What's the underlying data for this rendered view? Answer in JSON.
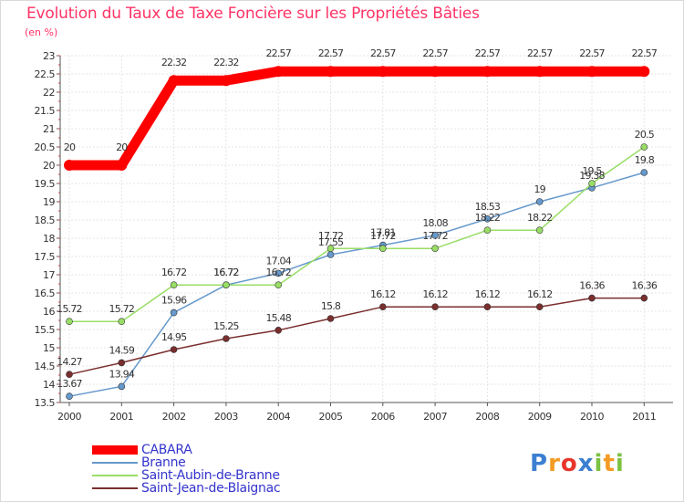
{
  "chart_data": {
    "type": "line",
    "title": "Evolution du Taux de Taxe Foncière sur les Propriétés Bâties",
    "ylabel": "(en %)",
    "xlabel": "",
    "ylim": [
      13.5,
      23
    ],
    "yticks": [
      13.5,
      14,
      14.5,
      15,
      15.5,
      16,
      16.5,
      17,
      17.5,
      18,
      18.5,
      19,
      19.5,
      20,
      20.5,
      21,
      21.5,
      22,
      22.5,
      23
    ],
    "ytick_labels": [
      "13.5",
      "14",
      "14.5",
      "15",
      "15.5",
      "16",
      "16.5",
      "17",
      "17.5",
      "18",
      "18.5",
      "19",
      "19.5",
      "20",
      "20.5",
      "21",
      "21.5",
      "22",
      "22.5",
      "23"
    ],
    "categories": [
      "2000",
      "2001",
      "2002",
      "2003",
      "2004",
      "2005",
      "2006",
      "2007",
      "2008",
      "2009",
      "2010",
      "2011"
    ],
    "grid": true,
    "series": [
      {
        "name": "CABARA",
        "color": "#ff0000",
        "values": [
          20,
          20,
          22.32,
          22.32,
          22.57,
          22.57,
          22.57,
          22.57,
          22.57,
          22.57,
          22.57,
          22.57
        ],
        "labels": [
          "20",
          "20",
          "22.32",
          "22.32",
          "22.57",
          "22.57",
          "22.57",
          "22.57",
          "22.57",
          "22.57",
          "22.57",
          "22.57"
        ]
      },
      {
        "name": "Branne",
        "color": "#6699cc",
        "values": [
          13.67,
          13.94,
          15.96,
          16.72,
          17.04,
          17.55,
          17.81,
          18.08,
          18.53,
          19,
          19.38,
          19.8
        ],
        "labels": [
          "13.67",
          "13.94",
          "15.96",
          "16.72",
          "17.04",
          "17.55",
          "17.81",
          "18.08",
          "18.53",
          "19",
          "19.38",
          "19.8"
        ]
      },
      {
        "name": "Saint-Aubin-de-Branne",
        "color": "#99dd66",
        "values": [
          15.72,
          15.72,
          16.72,
          16.72,
          16.72,
          17.72,
          17.72,
          17.72,
          18.22,
          18.22,
          19.5,
          20.5
        ],
        "labels": [
          "15.72",
          "15.72",
          "16.72",
          "16.72",
          "16.72",
          "17.72",
          "17.72",
          "17.72",
          "18.22",
          "18.22",
          "19.5",
          "20.5"
        ]
      },
      {
        "name": "Saint-Jean-de-Blaignac",
        "color": "#7a2e2e",
        "values": [
          14.27,
          14.59,
          14.95,
          15.25,
          15.48,
          15.8,
          16.12,
          16.12,
          16.12,
          16.12,
          16.36,
          16.36
        ],
        "labels": [
          "14.27",
          "14.59",
          "14.95",
          "15.25",
          "15.48",
          "15.8",
          "16.12",
          "16.12",
          "16.12",
          "16.12",
          "16.36",
          "16.36"
        ]
      }
    ]
  },
  "brand": {
    "letters": [
      "P",
      "r",
      "o",
      "x",
      "i",
      "t",
      "i"
    ]
  }
}
